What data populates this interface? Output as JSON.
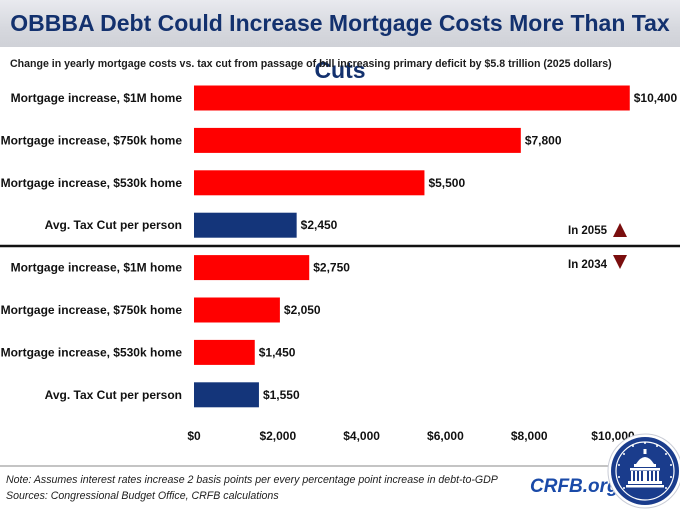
{
  "title": "OBBBA Debt Could Increase Mortgage Costs More Than Tax Cuts",
  "subtitle": "Change in yearly mortgage costs vs. tax cut from passage of bill increasing primary deficit by $5.8 trillion (2025 dollars)",
  "note": "Note: Assumes interest rates increase 2 basis points per every percentage point increase in debt-to-GDP",
  "sources": "Sources: Congressional Budget Office, CRFB calculations",
  "brand": "CRFB.org",
  "colors": {
    "red": "#ff0000",
    "blue": "#14357a",
    "title": "#13316e",
    "arrow": "#7a0e0e"
  },
  "chart_data": {
    "type": "bar",
    "orientation": "horizontal",
    "xlim": [
      0,
      11000
    ],
    "x_ticks": [
      "$0",
      "$2,000",
      "$4,000",
      "$6,000",
      "$8,000",
      "$10,000"
    ],
    "x_tick_values": [
      0,
      2000,
      4000,
      6000,
      8000,
      10000
    ],
    "grid": false,
    "groups": [
      {
        "label": "In 2055",
        "marker": "up-arrow",
        "bars": [
          {
            "category": "Mortgage increase, $1M home",
            "value": 10400,
            "label": "$10,400",
            "color": "red"
          },
          {
            "category": "Mortgage increase, $750k home",
            "value": 7800,
            "label": "$7,800",
            "color": "red"
          },
          {
            "category": "Mortgage increase, $530k home",
            "value": 5500,
            "label": "$5,500",
            "color": "red"
          },
          {
            "category": "Avg. Tax Cut per person",
            "value": 2450,
            "label": "$2,450",
            "color": "blue"
          }
        ]
      },
      {
        "label": "In 2034",
        "marker": "down-arrow",
        "bars": [
          {
            "category": "Mortgage increase, $1M home",
            "value": 2750,
            "label": "$2,750",
            "color": "red"
          },
          {
            "category": "Mortgage increase, $750k home",
            "value": 2050,
            "label": "$2,050",
            "color": "red"
          },
          {
            "category": "Mortgage increase, $530k home",
            "value": 1450,
            "label": "$1,450",
            "color": "red"
          },
          {
            "category": "Avg. Tax Cut per person",
            "value": 1550,
            "label": "$1,550",
            "color": "blue"
          }
        ]
      }
    ]
  }
}
